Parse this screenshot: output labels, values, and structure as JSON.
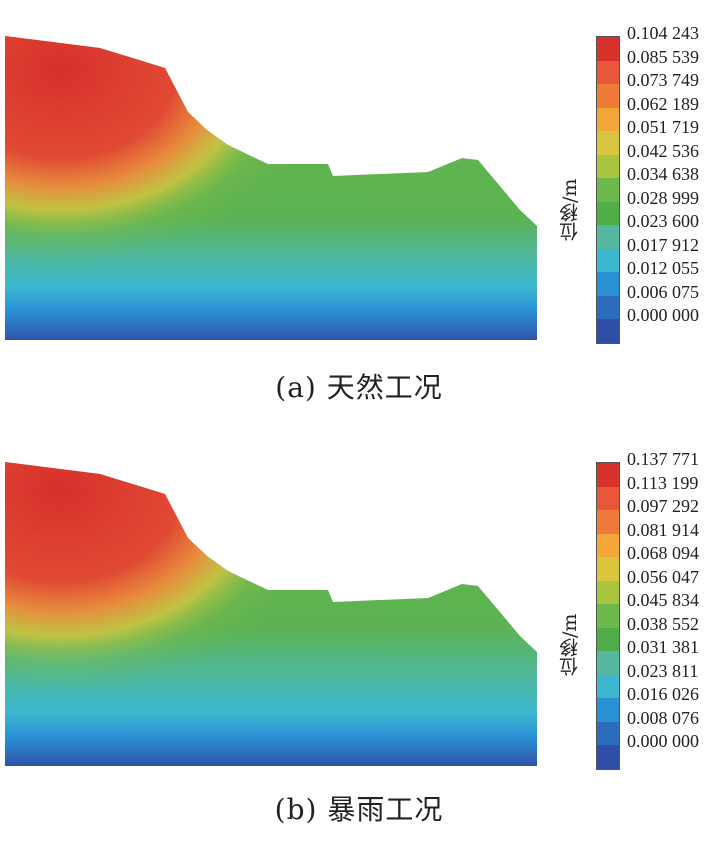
{
  "panels": [
    {
      "caption": "(a) 天然工况",
      "legend_label": "位移/m",
      "legend_values": [
        "0.104 243",
        "0.085 539",
        "0.073 749",
        "0.062 189",
        "0.051 719",
        "0.042 536",
        "0.034 638",
        "0.028 999",
        "0.023 600",
        "0.017 912",
        "0.012 055",
        "0.006 075",
        "0.000 000"
      ]
    },
    {
      "caption": "(b) 暴雨工况",
      "legend_label": "位移/m",
      "legend_values": [
        "0.137 771",
        "0.113 199",
        "0.097 292",
        "0.081 914",
        "0.068 094",
        "0.056 047",
        "0.045 834",
        "0.038 552",
        "0.031 381",
        "0.023 811",
        "0.016 026",
        "0.008 076",
        "0.000 000"
      ]
    }
  ],
  "legend_colors": [
    "#d8302b",
    "#e8573a",
    "#ee7a3a",
    "#f2a63a",
    "#d8c63f",
    "#a9c53f",
    "#6cb84a",
    "#4fae48",
    "#55b9a0",
    "#3cb7cf",
    "#2a91d4",
    "#2c6cbf",
    "#2f4fa6"
  ]
}
